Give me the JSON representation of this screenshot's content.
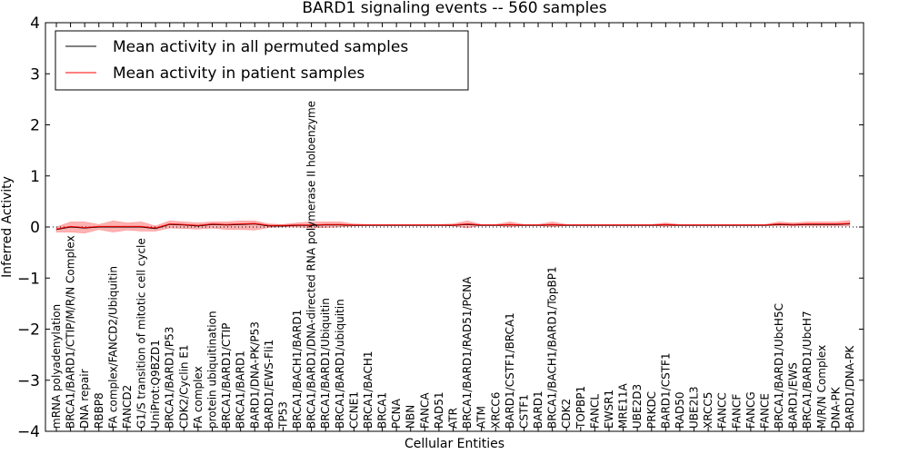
{
  "chart_data": {
    "type": "line",
    "title": "BARD1 signaling events -- 560 samples",
    "xlabel": "Cellular Entities",
    "ylabel": "Inferred Activity",
    "ylim": [
      -4,
      4
    ],
    "yticks": [
      -4,
      -3,
      -2,
      -1,
      0,
      1,
      2,
      3,
      4
    ],
    "ytick_labels": [
      "−4",
      "−3",
      "−2",
      "−1",
      "0",
      "1",
      "2",
      "3",
      "4"
    ],
    "legend": {
      "placement": "top-left",
      "entries": [
        {
          "label": "Mean activity in all permuted samples",
          "color": "#000000"
        },
        {
          "label": "Mean activity in patient samples",
          "color": "#ff0000"
        }
      ]
    },
    "categories": [
      "mRNA polyadenylation",
      "BRCA1/BARD1/CTIP/M/R/N Complex",
      "DNA repair",
      "RBBP8",
      "FA complex/FANCD2/Ubiquitin",
      "FANCD2",
      "G1/S transition of mitotic cell cycle",
      "UniProt:Q9BZD1",
      "BRCA1/BARD1/P53",
      "CDK2/Cyclin E1",
      "FA complex",
      "protein ubiquitination",
      "BRCA1/BARD1/CTIP",
      "BRCA1/BARD1",
      "BARD1/DNA-PK/P53",
      "BARD1/EWS-Fli1",
      "TP53",
      "BRCA1/BACH1/BARD1",
      "BRCA1/BARD1/DNA-directed RNA polymerase II holoenzyme",
      "BRCA1/BARD1/Ubiquitin",
      "BRCA1/BARD1/ubiquitin",
      "CCNE1",
      "BRCA1/BACH1",
      "BRCA1",
      "PCNA",
      "NBN",
      "FANCA",
      "RAD51",
      "ATR",
      "BRCA1/BARD1/RAD51/PCNA",
      "ATM",
      "XRCC6",
      "BARD1/CSTF1/BRCA1",
      "CSTF1",
      "BARD1",
      "BRCA1/BACH1/BARD1/TopBP1",
      "CDK2",
      "TOPBP1",
      "FANCL",
      "EWSR1",
      "MRE11A",
      "UBE2D3",
      "PRKDC",
      "BARD1/CSTF1",
      "RAD50",
      "UBE2L3",
      "XRCC5",
      "FANCC",
      "FANCF",
      "FANCG",
      "FANCE",
      "BRCA1/BARD1/UbcH5C",
      "BARD1/EWS",
      "BRCA1/BARD1/UbcH7",
      "M/R/N Complex",
      "DNA-PK",
      "BARD1/DNA-PK"
    ],
    "series": [
      {
        "name": "Mean activity in all permuted samples",
        "color": "#000000",
        "values": [
          -0.05,
          0.0,
          -0.02,
          0.0,
          0.0,
          0.0,
          0.0,
          -0.03,
          0.05,
          0.04,
          0.02,
          0.05,
          0.04,
          0.05,
          0.06,
          0.02,
          0.02,
          0.03,
          0.03,
          0.04,
          0.04,
          0.03,
          0.03,
          0.03,
          0.03,
          0.03,
          0.03,
          0.03,
          0.03,
          0.05,
          0.03,
          0.03,
          0.04,
          0.03,
          0.03,
          0.04,
          0.03,
          0.03,
          0.03,
          0.03,
          0.03,
          0.03,
          0.03,
          0.04,
          0.03,
          0.03,
          0.03,
          0.03,
          0.03,
          0.03,
          0.03,
          0.05,
          0.04,
          0.05,
          0.05,
          0.05,
          0.06
        ]
      },
      {
        "name": "Mean activity in patient samples",
        "color": "#ff0000",
        "values": [
          -0.04,
          0.01,
          -0.01,
          0.01,
          0.01,
          0.01,
          0.01,
          -0.02,
          0.06,
          0.05,
          0.03,
          0.06,
          0.05,
          0.06,
          0.07,
          0.03,
          0.03,
          0.04,
          0.04,
          0.05,
          0.05,
          0.04,
          0.04,
          0.04,
          0.04,
          0.04,
          0.04,
          0.04,
          0.04,
          0.06,
          0.04,
          0.04,
          0.05,
          0.04,
          0.04,
          0.05,
          0.04,
          0.04,
          0.04,
          0.04,
          0.04,
          0.04,
          0.04,
          0.05,
          0.04,
          0.04,
          0.04,
          0.04,
          0.04,
          0.04,
          0.04,
          0.06,
          0.05,
          0.06,
          0.06,
          0.06,
          0.07
        ],
        "band_upper": [
          0.0,
          0.1,
          0.1,
          0.05,
          0.12,
          0.08,
          0.1,
          0.02,
          0.12,
          0.1,
          0.08,
          0.1,
          0.1,
          0.12,
          0.12,
          0.06,
          0.05,
          0.08,
          0.1,
          0.1,
          0.1,
          0.06,
          0.05,
          0.05,
          0.05,
          0.05,
          0.05,
          0.05,
          0.06,
          0.12,
          0.05,
          0.05,
          0.1,
          0.05,
          0.05,
          0.1,
          0.05,
          0.05,
          0.05,
          0.05,
          0.05,
          0.05,
          0.05,
          0.08,
          0.05,
          0.05,
          0.05,
          0.05,
          0.05,
          0.05,
          0.05,
          0.1,
          0.08,
          0.1,
          0.1,
          0.1,
          0.13
        ],
        "band_lower": [
          -0.1,
          -0.1,
          -0.12,
          -0.05,
          -0.1,
          -0.06,
          -0.08,
          -0.08,
          -0.02,
          -0.03,
          -0.04,
          -0.02,
          -0.05,
          -0.05,
          -0.06,
          -0.01,
          0.0,
          0.0,
          -0.02,
          -0.01,
          0.0,
          0.02,
          0.03,
          0.03,
          0.03,
          0.03,
          0.03,
          0.03,
          0.02,
          -0.02,
          0.03,
          0.03,
          0.0,
          0.03,
          0.03,
          0.0,
          0.03,
          0.03,
          0.03,
          0.03,
          0.03,
          0.03,
          0.03,
          0.01,
          0.03,
          0.03,
          0.03,
          0.03,
          0.03,
          0.03,
          0.03,
          0.02,
          0.02,
          0.02,
          0.02,
          0.02,
          0.02
        ]
      }
    ],
    "zero_line": {
      "style": "dotted",
      "y": 0
    }
  }
}
